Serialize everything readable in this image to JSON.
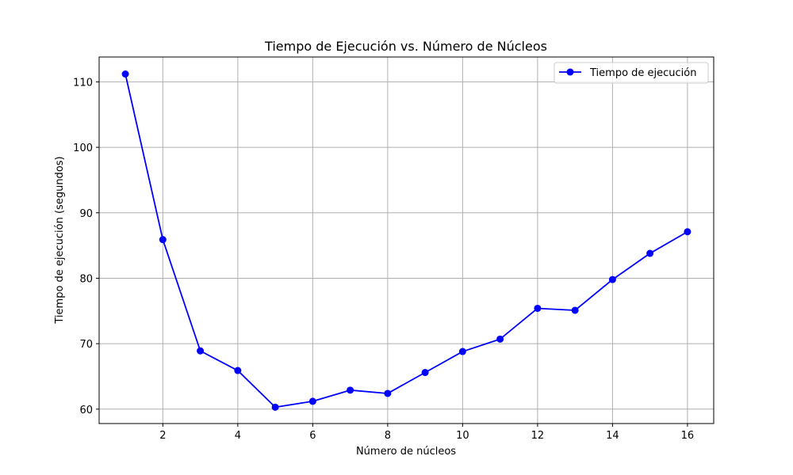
{
  "chart_data": {
    "type": "line",
    "title": "Tiempo de Ejecución vs. Número de Núcleos",
    "xlabel": "Número de núcleos",
    "ylabel": "Tiempo de ejecución (segundos)",
    "xlim": [
      0.3,
      16.7
    ],
    "ylim": [
      57.8,
      113.8
    ],
    "xticks": [
      2,
      4,
      6,
      8,
      10,
      12,
      14,
      16
    ],
    "yticks": [
      60,
      70,
      80,
      90,
      100,
      110
    ],
    "grid": true,
    "legend_position": "top-right",
    "series": [
      {
        "name": "Tiempo de ejecución",
        "color": "#0000ff",
        "marker": "circle",
        "x": [
          1,
          2,
          3,
          4,
          5,
          6,
          7,
          8,
          9,
          10,
          11,
          12,
          13,
          14,
          15,
          16
        ],
        "y": [
          111.2,
          85.9,
          68.9,
          65.9,
          60.3,
          61.2,
          62.9,
          62.4,
          65.6,
          68.8,
          70.7,
          75.4,
          75.1,
          79.8,
          83.8,
          87.1
        ]
      }
    ]
  }
}
